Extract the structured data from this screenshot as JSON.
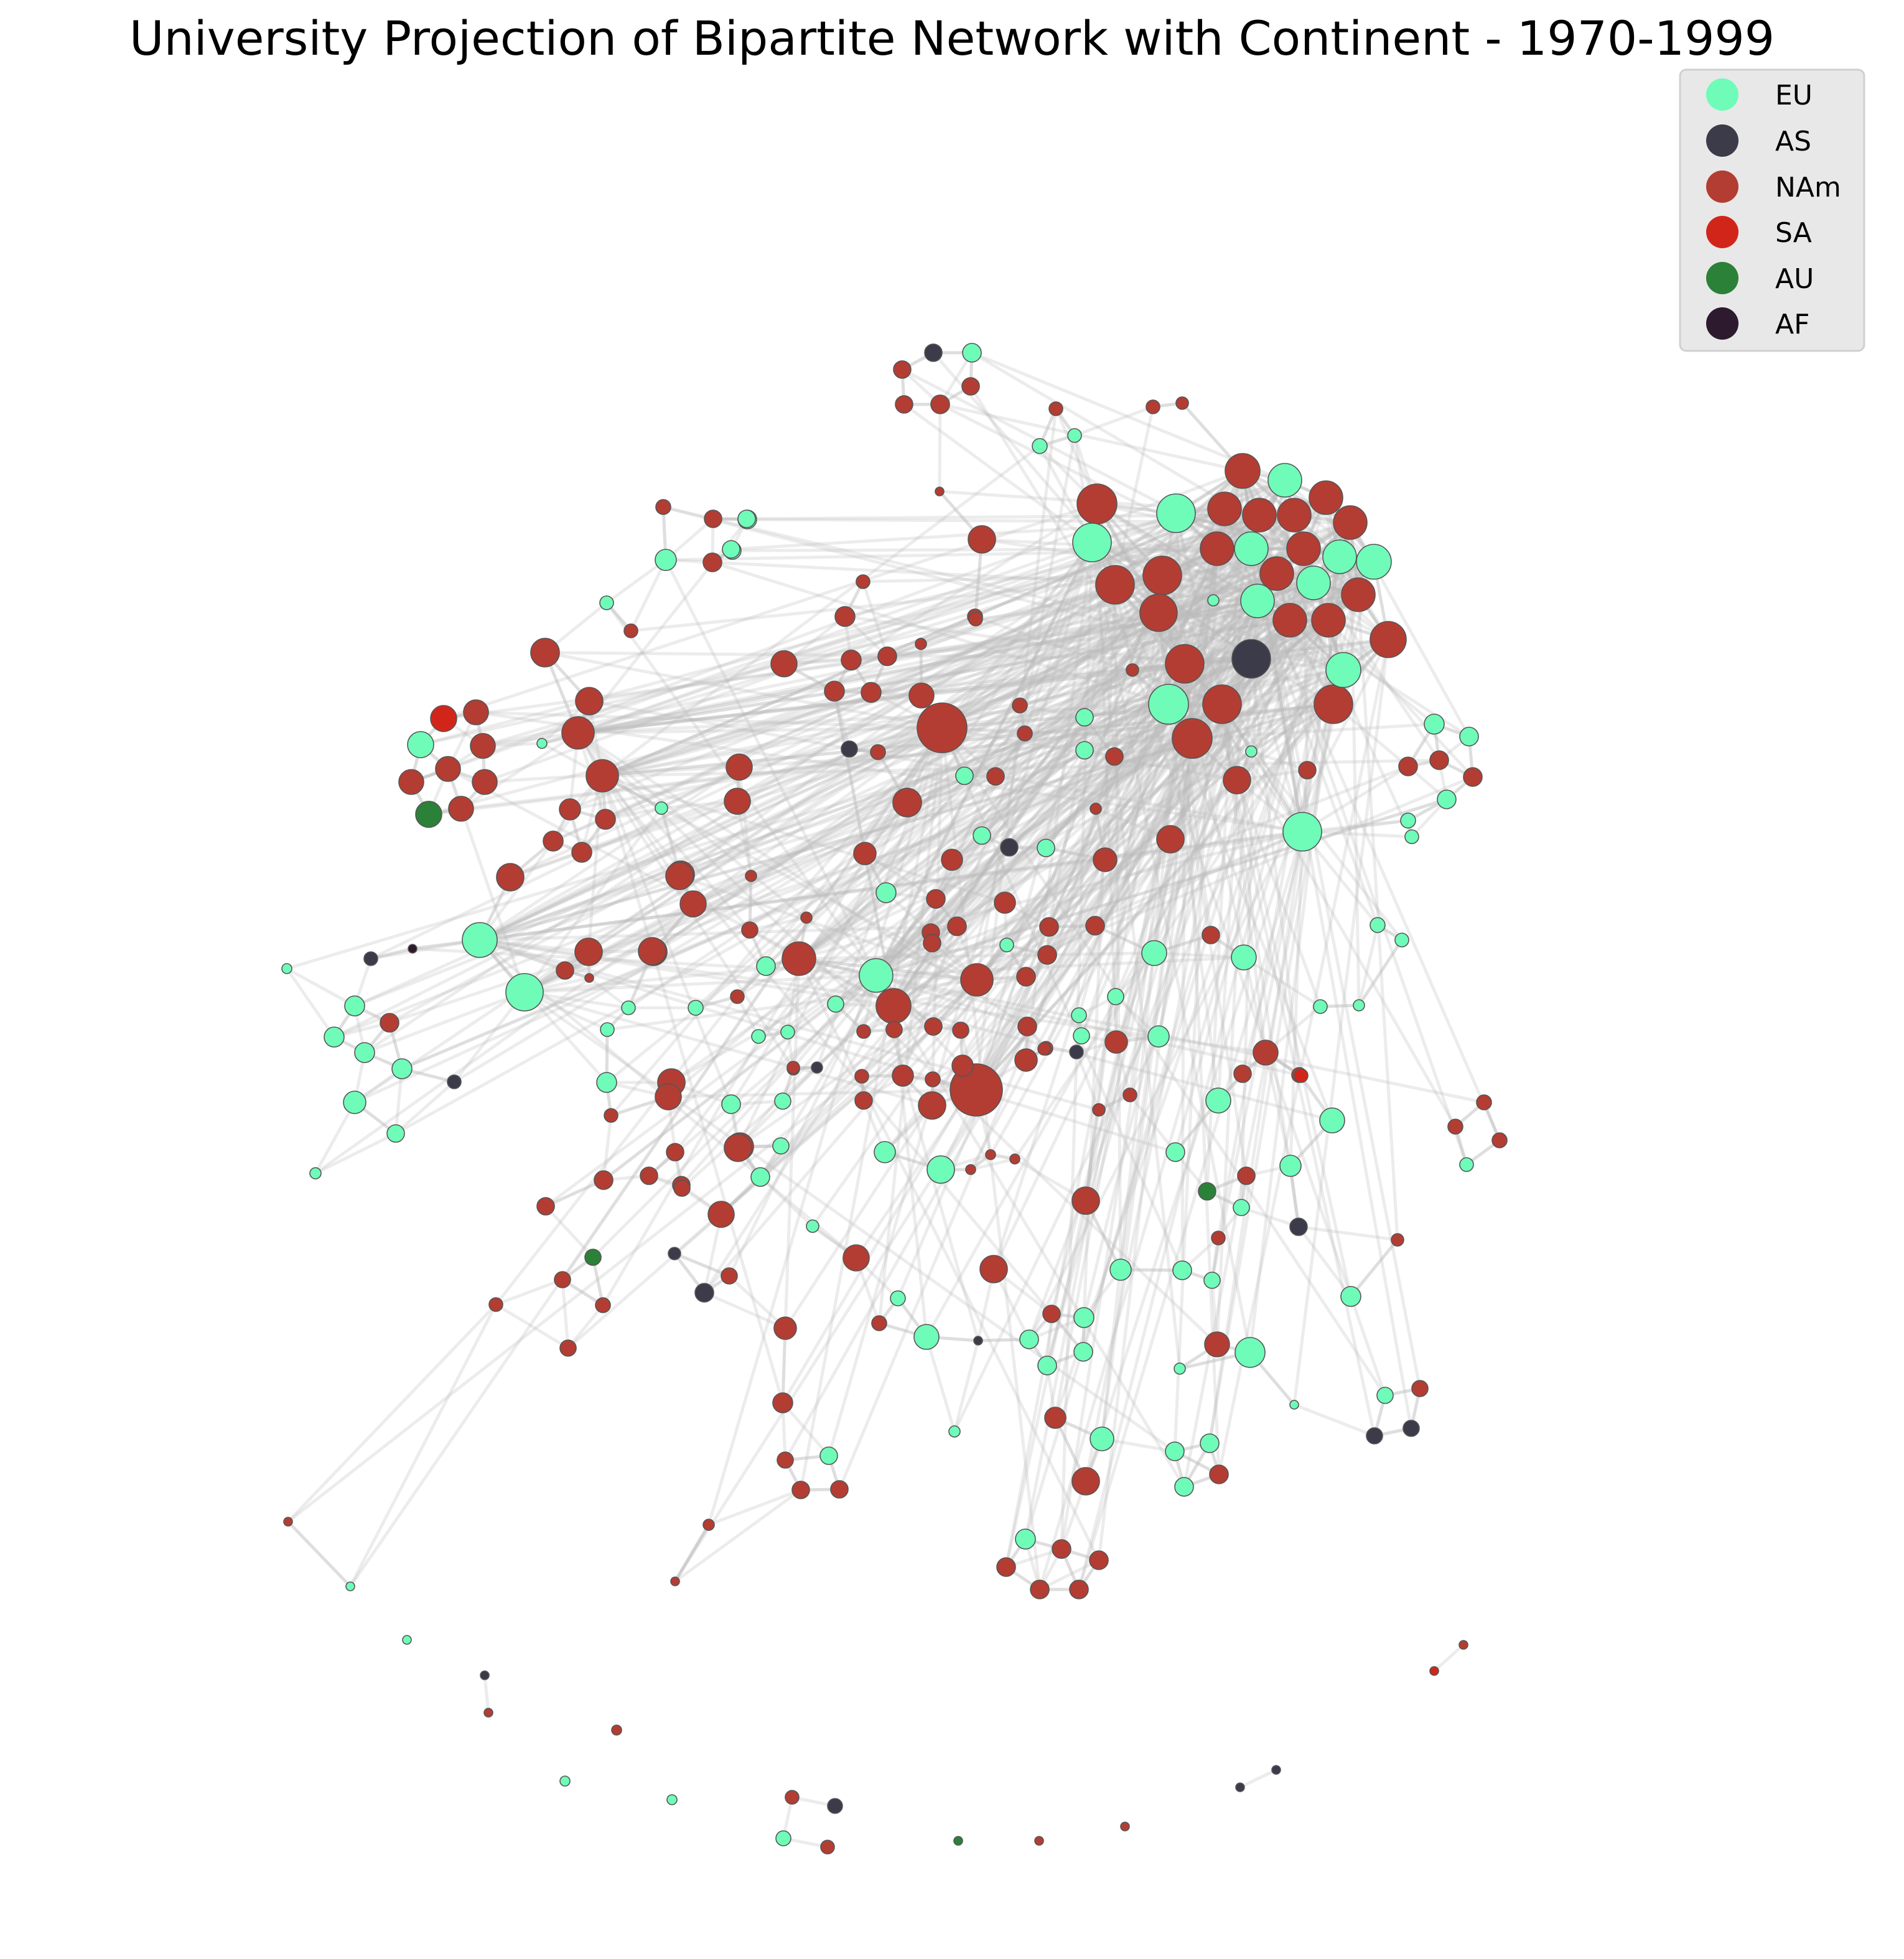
{
  "title": "University Projection of Bipartite Network with Continent - 1970-1999",
  "legend": [
    {
      "key": "EU",
      "label": "EU",
      "color": "#6ffcb9"
    },
    {
      "key": "AS",
      "label": "AS",
      "color": "#3c3b4a"
    },
    {
      "key": "NAm",
      "label": "NAm",
      "color": "#b33d33"
    },
    {
      "key": "SA",
      "label": "SA",
      "color": "#d2251a"
    },
    {
      "key": "AU",
      "label": "AU",
      "color": "#2b8137"
    },
    {
      "key": "AF",
      "label": "AF",
      "color": "#2d1a2e"
    }
  ],
  "colors": {
    "background": "#ffffff",
    "edge": "#b9b9b9",
    "node_outline": "#555555",
    "legend_background": "#e8e8e8"
  },
  "chart_data": {
    "type": "network",
    "axes_visible": false,
    "legend_position": "top-right",
    "nodes_by_continent": {
      "EU": 104,
      "AS": 19,
      "NAm": 203,
      "SA": 4,
      "AU": 4,
      "AF": 1
    }
  }
}
